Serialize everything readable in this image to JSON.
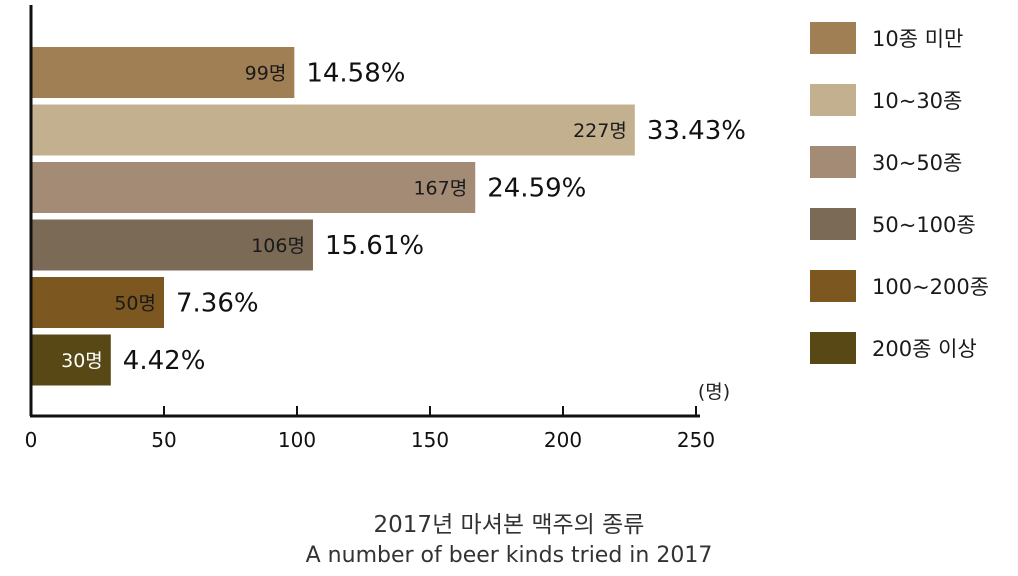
{
  "chart_data": {
    "type": "bar",
    "orientation": "horizontal",
    "categories": [
      "10종 미만",
      "10~30종",
      "30~50종",
      "50~100종",
      "100~200종",
      "200종 이상"
    ],
    "values": [
      99,
      227,
      167,
      106,
      50,
      30
    ],
    "value_labels": [
      "99명",
      "227명",
      "167명",
      "106명",
      "50명",
      "30명"
    ],
    "percent_labels": [
      "14.58%",
      "33.43%",
      "24.59%",
      "15.61%",
      "7.36%",
      "4.42%"
    ],
    "colors": [
      "#A07F55",
      "#C3B08F",
      "#A48B75",
      "#7B6A55",
      "#7D5720",
      "#574815"
    ],
    "label_colors": [
      "#1a1a1a",
      "#1a1a1a",
      "#1a1a1a",
      "#1a1a1a",
      "#1a1a1a",
      "#ffffff"
    ],
    "xlim": [
      0,
      250
    ],
    "xticks": [
      "0",
      "50",
      "100",
      "150",
      "200",
      "250"
    ],
    "unit": "(명)",
    "legend_position": "right",
    "grid": false
  },
  "caption": {
    "korean": "2017년 마셔본 맥주의 종류",
    "english": "A number of beer kinds tried in 2017"
  }
}
